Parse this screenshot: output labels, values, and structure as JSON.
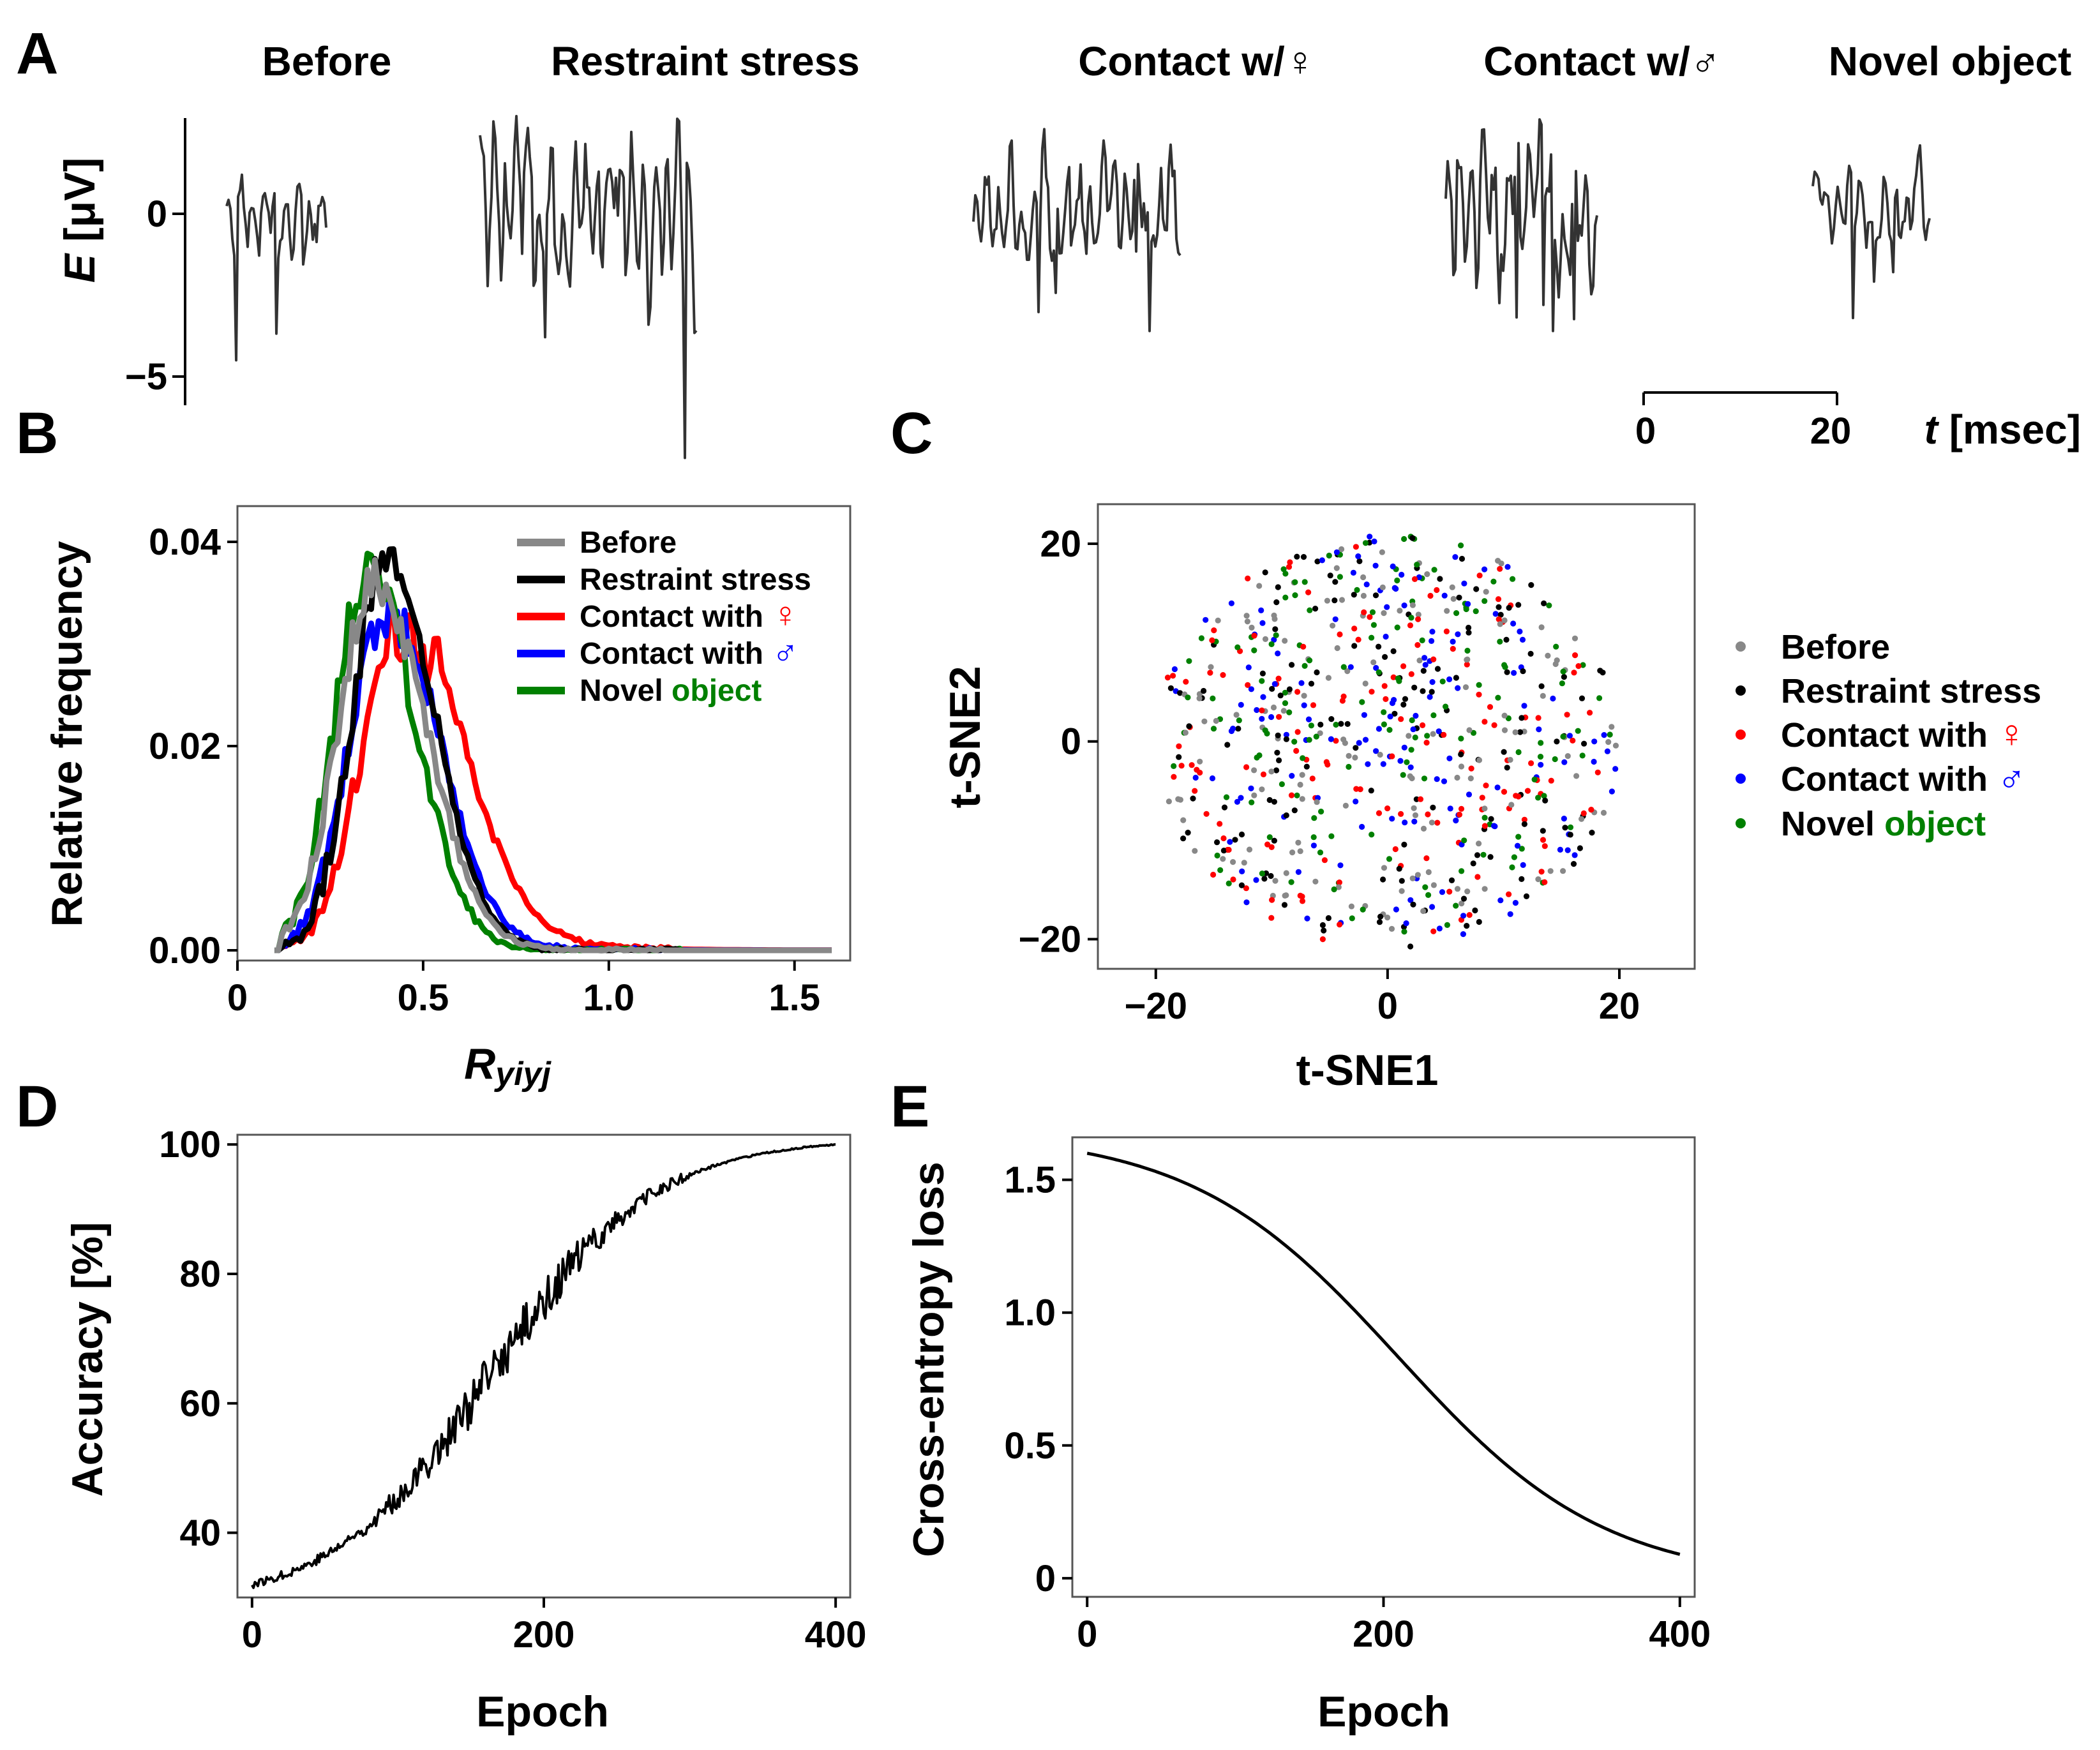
{
  "panel_labels": {
    "A": "A",
    "B": "B",
    "C": "C",
    "D": "D",
    "E": "E"
  },
  "chart_data": [
    {
      "id": "A",
      "type": "line",
      "description_only_for_shape": "raw extracellular voltage traces",
      "conditions": [
        "Before",
        "Restraint stress",
        "Contact w/♀",
        "Contact w/♂",
        "Novel object"
      ],
      "ylabel_var": "E",
      "ylabel_unit": " [μV]",
      "yticks": [
        0,
        -5
      ],
      "ytick_labels": [
        "0",
        "−5"
      ],
      "ylim": [
        -6,
        3
      ],
      "scale_bar": {
        "start_label": "0",
        "end_label": "20",
        "axis_var": "t",
        "axis_unit": " [msec]",
        "length_ms": 20
      },
      "series_seeds": [
        3,
        7,
        11,
        17,
        23
      ],
      "series_lengths_ms": [
        10.5,
        22.5,
        21.5,
        15.8,
        12.3
      ],
      "series_min": [
        -4.5,
        -7.5,
        -3.6,
        -3.6,
        -3.2
      ],
      "series_max": [
        1.2,
        3.0,
        2.6,
        2.9,
        2.1
      ],
      "color": "#333333"
    },
    {
      "id": "B",
      "type": "line",
      "xlabel_main": "R",
      "xlabel_sub": "yiyj",
      "ylabel": "Relative frequency",
      "xlim": [
        0,
        1.65
      ],
      "ylim": [
        -0.001,
        0.0435
      ],
      "xticks": [
        0,
        0.5,
        1.0,
        1.5
      ],
      "xtick_labels": [
        "0",
        "0.5",
        "1.0",
        "1.5"
      ],
      "yticks": [
        0,
        0.02,
        0.04
      ],
      "ytick_labels": [
        "0.00",
        "0.02",
        "0.04"
      ],
      "series": [
        {
          "name": "Before",
          "color": "#888888",
          "mode": 0.37,
          "peak": 0.036,
          "sigL": 0.1,
          "sigR": 0.14,
          "tail": 0.0
        },
        {
          "name": "Restraint stress",
          "color": "#000000",
          "mode": 0.4,
          "peak": 0.039,
          "sigL": 0.09,
          "sigR": 0.13,
          "tail": 0.0
        },
        {
          "name": "Contact with ♀",
          "color": "#ff0000",
          "mode": 0.43,
          "peak": 0.031,
          "sigL": 0.1,
          "sigR": 0.17,
          "tail": 0.004
        },
        {
          "name": "Contact with ♂",
          "color": "#0000ff",
          "mode": 0.4,
          "peak": 0.033,
          "sigL": 0.1,
          "sigR": 0.14,
          "tail": 0.0015
        },
        {
          "name": "Novel object",
          "color": "#008000",
          "mode": 0.35,
          "peak": 0.037,
          "sigL": 0.09,
          "sigR": 0.13,
          "tail": 0.0
        }
      ],
      "legend": [
        {
          "lead": "Before",
          "tail": "",
          "tail_color": "#000000"
        },
        {
          "lead": "Restraint stress",
          "tail": "",
          "tail_color": "#000000"
        },
        {
          "lead": "Contact with ",
          "tail": "♀",
          "tail_color": "#ff0000"
        },
        {
          "lead": "Contact with ",
          "tail": "♂",
          "tail_color": "#0000ff"
        },
        {
          "lead": "Novel ",
          "tail": "object",
          "tail_color": "#008000"
        }
      ],
      "legend_position": "upper-right"
    },
    {
      "id": "C",
      "type": "scatter",
      "xlabel": "t-SNE1",
      "ylabel": "t-SNE2",
      "xlim": [
        -25,
        26.5
      ],
      "ylim": [
        -23,
        24
      ],
      "xticks": [
        -20,
        0,
        20
      ],
      "xtick_labels": [
        "−20",
        "0",
        "20"
      ],
      "yticks": [
        20,
        0,
        -20
      ],
      "ytick_labels": [
        "20",
        "0",
        "−20"
      ],
      "points_per_class": 150,
      "cloud_radius_x": 20,
      "cloud_radius_y": 21,
      "classes": [
        {
          "name": "Before",
          "color": "#888888"
        },
        {
          "name": "Restraint stress",
          "color": "#000000"
        },
        {
          "name": "Contact with ♀",
          "color": "#ff0000"
        },
        {
          "name": "Contact with ♂",
          "color": "#0000ff"
        },
        {
          "name": "Novel object",
          "color": "#008000"
        }
      ],
      "legend": [
        {
          "lead": "Before",
          "tail": "",
          "tail_color": "#000000"
        },
        {
          "lead": "Restraint stress",
          "tail": "",
          "tail_color": "#000000"
        },
        {
          "lead": "Contact with ",
          "tail": "♀",
          "tail_color": "#ff0000"
        },
        {
          "lead": "Contact with ",
          "tail": "♂",
          "tail_color": "#0000ff"
        },
        {
          "lead": "Novel ",
          "tail": "object",
          "tail_color": "#008000"
        }
      ],
      "legend_position": "outside-right"
    },
    {
      "id": "D",
      "type": "line",
      "xlabel": "Epoch",
      "ylabel": "Accuracy [%]",
      "xlim": [
        -10,
        410
      ],
      "ylim": [
        30,
        101.5
      ],
      "xticks": [
        0,
        200,
        400
      ],
      "xtick_labels": [
        "0",
        "200",
        "400"
      ],
      "yticks": [
        40,
        60,
        80,
        100
      ],
      "ytick_labels": [
        "40",
        "60",
        "80",
        "100"
      ],
      "curve": {
        "start": 32,
        "end": 100,
        "midpoint": 165,
        "scale": 55
      },
      "color": "#000000"
    },
    {
      "id": "E",
      "type": "line",
      "xlabel": "Epoch",
      "ylabel": "Cross-entropy loss",
      "xlim": [
        -10,
        410
      ],
      "ylim": [
        -0.07,
        1.66
      ],
      "xticks": [
        0,
        200,
        400
      ],
      "xtick_labels": [
        "0",
        "200",
        "400"
      ],
      "yticks": [
        0,
        0.5,
        1.0,
        1.5
      ],
      "ytick_labels": [
        "0",
        "0.5",
        "1.0",
        "1.5"
      ],
      "curve": {
        "start": 1.6,
        "end": 0.09,
        "midpoint": 210,
        "scale": 70
      },
      "color": "#000000"
    }
  ]
}
